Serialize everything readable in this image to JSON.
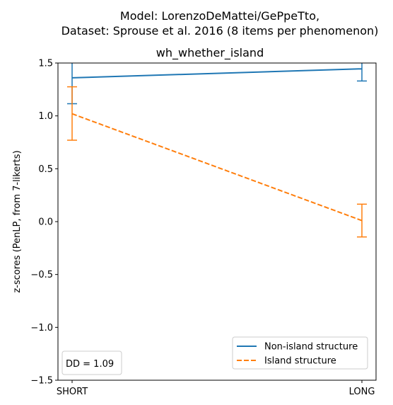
{
  "figure": {
    "suptitle_line1": "Model: LorenzoDeMattei/GePpeTto,",
    "suptitle_line2": "Dataset: Sprouse et al. 2016 (8 items per phenomenon)",
    "title": "wh_whether_island"
  },
  "chart_data": {
    "type": "line",
    "title": "wh_whether_island",
    "xlabel": "",
    "ylabel": "z-scores (PenLP, from 7-likerts)",
    "categories": [
      "SHORT",
      "LONG"
    ],
    "ylim": [
      -1.5,
      1.5
    ],
    "yticks": [
      "−1.5",
      "−1.0",
      "−0.5",
      "0.0",
      "0.5",
      "1.0",
      "1.5"
    ],
    "ytick_values": [
      -1.5,
      -1.0,
      -0.5,
      0.0,
      0.5,
      1.0,
      1.5
    ],
    "grid": false,
    "legend_position": "lower-right",
    "series": [
      {
        "name": "Non-island structure",
        "values": [
          1.36,
          1.445
        ],
        "err_low": [
          1.115,
          1.33
        ],
        "err_high": [
          1.61,
          1.56
        ],
        "color": "#1f77b4",
        "style": "solid"
      },
      {
        "name": "Island structure",
        "values": [
          1.02,
          0.01
        ],
        "err_low": [
          0.77,
          -0.145
        ],
        "err_high": [
          1.275,
          0.165
        ],
        "color": "#ff7f0e",
        "style": "dashed"
      }
    ],
    "annotation": "DD = 1.09"
  }
}
